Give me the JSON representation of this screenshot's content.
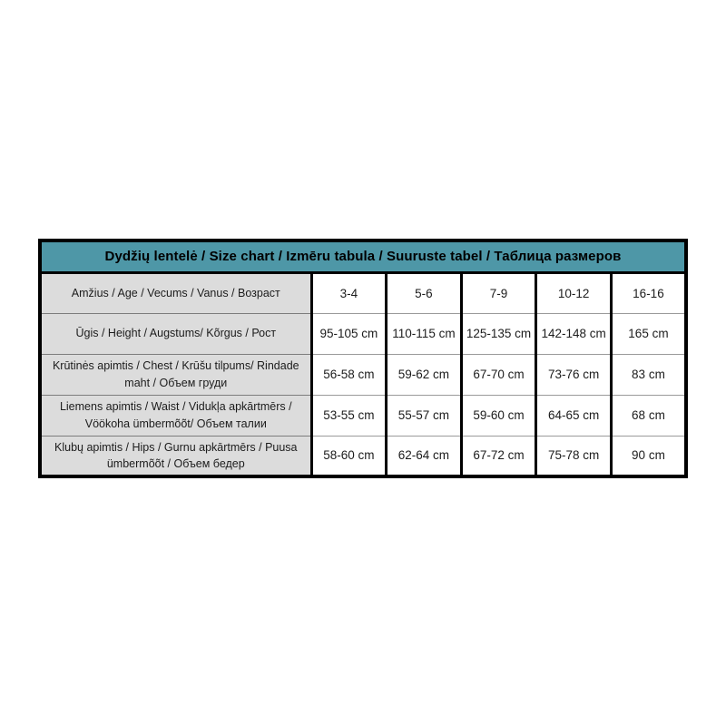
{
  "page": {
    "background": "#ffffff"
  },
  "table": {
    "title": "Dydžių lentelė / Size chart / Izmēru tabula / Suuruste tabel / Таблица размеров",
    "colors": {
      "header_bg": "#4E97A7",
      "label_bg": "#DCDCDC",
      "border": "#000000",
      "row_divider": "#9a9a9a",
      "text": "#1c1c1c"
    },
    "rows": [
      {
        "label": "Amžius / Age / Vecums / Vanus / Возраст",
        "values": [
          "3-4",
          "5-6",
          "7-9",
          "10-12",
          "16-16"
        ]
      },
      {
        "label": "Ūgis / Height / Augstums/ Kõrgus / Рост",
        "values": [
          "95-105 cm",
          "110-115 cm",
          "125-135 cm",
          "142-148 cm",
          "165 cm"
        ]
      },
      {
        "label": "Krūtinės apimtis / Chest / Krūšu tilpums/  Rindade maht / Объем груди",
        "values": [
          "56-58 cm",
          "59-62 cm",
          "67-70 cm",
          "73-76 cm",
          "83 cm"
        ]
      },
      {
        "label": "Liemens apimtis / Waist / Vidukļa apkārtmērs / Vöökoha ümbermõõt/ Объем талии",
        "values": [
          "53-55 cm",
          "55-57 cm",
          "59-60 cm",
          "64-65 cm",
          "68 cm"
        ]
      },
      {
        "label": "Klubų apimtis / Hips / Gurnu apkārtmērs / Puusa ümbermõõt / Объем бедер",
        "values": [
          "58-60 cm",
          "62-64 cm",
          "67-72 cm",
          "75-78 cm",
          "90 cm"
        ]
      }
    ]
  }
}
